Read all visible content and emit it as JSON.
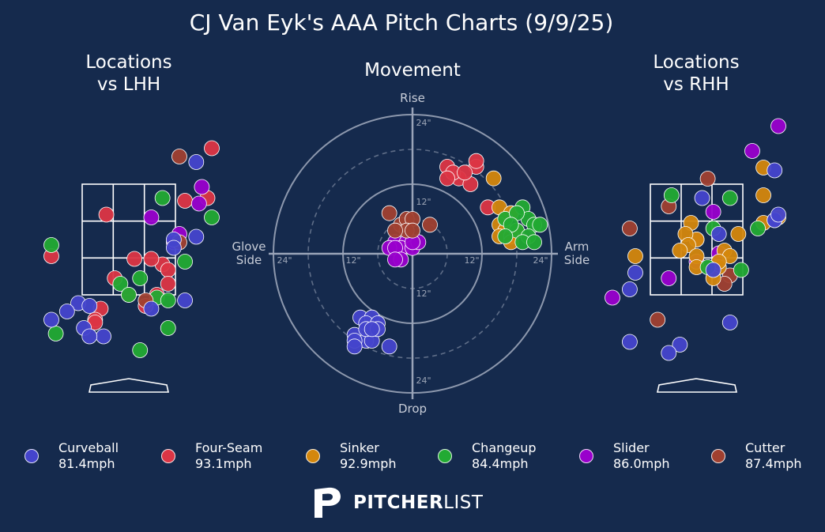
{
  "chart_data": [
    {
      "type": "scatter",
      "title": "CJ Van Eyk's AAA Pitch Charts (9/9/25)",
      "subtitle": "Movement",
      "labels": {
        "top": "Rise",
        "bottom": "Drop",
        "left": "Glove\nSide",
        "right": "Arm\nSide"
      },
      "ring_ticks": [
        "24\"",
        "12\"",
        "12\"",
        "24\"",
        "24\"",
        "12\"",
        "12\"",
        "24\""
      ],
      "rings": [
        6,
        12,
        18,
        24
      ],
      "range": 24,
      "series": [
        {
          "name": "Four-Seam",
          "color": "#dc3545",
          "points": [
            [
              6,
              15
            ],
            [
              8,
              13
            ],
            [
              11,
              15
            ],
            [
              10,
              12
            ],
            [
              7,
              14
            ],
            [
              11,
              16
            ],
            [
              13,
              8
            ],
            [
              9,
              14
            ],
            [
              6,
              13
            ]
          ]
        },
        {
          "name": "Sinker",
          "color": "#d4870d",
          "points": [
            [
              14,
              13
            ],
            [
              15,
              8
            ],
            [
              17,
              7
            ],
            [
              16,
              6
            ],
            [
              15,
              5
            ],
            [
              16,
              4
            ],
            [
              18,
              4
            ],
            [
              15,
              3
            ],
            [
              17,
              3
            ],
            [
              17,
              2
            ]
          ]
        },
        {
          "name": "Changeup",
          "color": "#22aa33",
          "points": [
            [
              16,
              6
            ],
            [
              19,
              8
            ],
            [
              20,
              6
            ],
            [
              18,
              7
            ],
            [
              18,
              4
            ],
            [
              17,
              5
            ],
            [
              21,
              5
            ],
            [
              22,
              5
            ],
            [
              20,
              3
            ],
            [
              19,
              2
            ],
            [
              16,
              3
            ],
            [
              21,
              2
            ]
          ]
        },
        {
          "name": "Slider",
          "color": "#9900cc",
          "points": [
            [
              -3,
              2
            ],
            [
              -1,
              2
            ],
            [
              -2,
              1
            ],
            [
              -4,
              1
            ],
            [
              -3,
              1
            ],
            [
              -2,
              -1
            ],
            [
              0,
              1
            ],
            [
              1,
              2
            ],
            [
              0,
              2
            ],
            [
              -3,
              -1
            ]
          ]
        },
        {
          "name": "Cutter",
          "color": "#a04030",
          "points": [
            [
              -4,
              7
            ],
            [
              -2,
              5
            ],
            [
              -1,
              6
            ],
            [
              0,
              6
            ],
            [
              -1,
              4
            ],
            [
              -3,
              4
            ],
            [
              3,
              5
            ],
            [
              0,
              4
            ]
          ]
        },
        {
          "name": "Curveball",
          "color": "#4444cc",
          "points": [
            [
              -9,
              -11
            ],
            [
              -7,
              -11
            ],
            [
              -8,
              -12
            ],
            [
              -6,
              -12
            ],
            [
              -10,
              -14
            ],
            [
              -8,
              -15
            ],
            [
              -7,
              -15
            ],
            [
              -10,
              -15
            ],
            [
              -8,
              -13
            ],
            [
              -6,
              -13
            ],
            [
              -10,
              -16
            ],
            [
              -4,
              -16
            ],
            [
              -7,
              -13
            ]
          ]
        }
      ]
    },
    {
      "type": "scatter",
      "title": "Locations\nvs LHH",
      "range_x": [
        -2.0,
        2.0
      ],
      "range_z": [
        0.2,
        4.6
      ],
      "series": [
        {
          "name": "Four-Seam",
          "color": "#dc3545",
          "points": [
            [
              2.0,
              4.15
            ],
            [
              1.4,
              3.25
            ],
            [
              1.0,
              3.2
            ],
            [
              -0.4,
              2.95
            ],
            [
              -1.6,
              2.2
            ],
            [
              0.1,
              2.15
            ],
            [
              0.6,
              2.05
            ],
            [
              0.4,
              2.15
            ],
            [
              0.7,
              1.95
            ],
            [
              0.7,
              1.7
            ],
            [
              -0.25,
              1.8
            ],
            [
              0.5,
              1.5
            ],
            [
              0.0,
              1.5
            ],
            [
              -0.5,
              1.25
            ],
            [
              0.3,
              1.3
            ],
            [
              -0.6,
              1.05
            ],
            [
              -0.6,
              1.0
            ]
          ]
        },
        {
          "name": "Changeup",
          "color": "#22aa33",
          "points": [
            [
              0.6,
              3.25
            ],
            [
              1.7,
              2.9
            ],
            [
              -1.6,
              2.4
            ],
            [
              1.0,
              2.1
            ],
            [
              0.2,
              1.8
            ],
            [
              -0.15,
              1.7
            ],
            [
              0.0,
              1.5
            ],
            [
              0.5,
              1.45
            ],
            [
              0.7,
              1.4
            ],
            [
              -1.3,
              0.8
            ],
            [
              0.7,
              0.9
            ],
            [
              0.2,
              0.5
            ]
          ]
        },
        {
          "name": "Slider",
          "color": "#9900cc",
          "points": [
            [
              1.3,
              3.45
            ],
            [
              1.25,
              3.15
            ],
            [
              0.4,
              2.9
            ],
            [
              0.9,
              2.6
            ],
            [
              0.8,
              2.45
            ]
          ]
        },
        {
          "name": "Cutter",
          "color": "#a04030",
          "points": [
            [
              0.9,
              4.0
            ],
            [
              0.9,
              2.45
            ],
            [
              0.3,
              1.4
            ]
          ]
        },
        {
          "name": "Curveball",
          "color": "#4444cc",
          "points": [
            [
              1.2,
              3.9
            ],
            [
              1.2,
              2.55
            ],
            [
              0.8,
              2.5
            ],
            [
              0.8,
              2.35
            ],
            [
              1.0,
              1.4
            ],
            [
              -0.9,
              1.35
            ],
            [
              -1.1,
              1.2
            ],
            [
              -0.7,
              1.3
            ],
            [
              0.4,
              1.25
            ],
            [
              -1.4,
              1.05
            ],
            [
              -0.8,
              0.9
            ],
            [
              -0.45,
              0.75
            ],
            [
              -0.7,
              0.75
            ]
          ]
        }
      ]
    },
    {
      "type": "scatter",
      "title": "Locations\nvs RHH",
      "range_x": [
        -2.0,
        2.0
      ],
      "range_z": [
        0.2,
        4.6
      ],
      "series": [
        {
          "name": "Slider",
          "color": "#9900cc",
          "points": [
            [
              1.0,
              4.1
            ],
            [
              0.3,
              3.0
            ],
            [
              0.4,
              2.25
            ],
            [
              0.0,
              2.1
            ],
            [
              -0.5,
              1.8
            ],
            [
              1.6,
              4.55
            ],
            [
              -2.0,
              1.45
            ]
          ]
        },
        {
          "name": "Cutter",
          "color": "#a04030",
          "points": [
            [
              0.2,
              3.6
            ],
            [
              -0.5,
              3.1
            ],
            [
              -1.2,
              2.7
            ],
            [
              0.0,
              2.5
            ],
            [
              0.6,
              1.85
            ],
            [
              0.5,
              1.7
            ],
            [
              -0.7,
              1.05
            ]
          ]
        },
        {
          "name": "Sinker",
          "color": "#d4870d",
          "points": [
            [
              1.2,
              3.8
            ],
            [
              1.2,
              3.3
            ],
            [
              -0.1,
              2.8
            ],
            [
              0.0,
              2.5
            ],
            [
              -0.2,
              2.6
            ],
            [
              0.5,
              2.3
            ],
            [
              1.8,
              2.9
            ],
            [
              1.2,
              2.8
            ],
            [
              -0.15,
              2.4
            ],
            [
              0.75,
              2.6
            ],
            [
              0.0,
              2.2
            ],
            [
              0.0,
              2.0
            ],
            [
              -1.1,
              2.2
            ],
            [
              0.4,
              2.0
            ],
            [
              -0.3,
              2.3
            ],
            [
              0.6,
              2.2
            ],
            [
              0.4,
              2.1
            ],
            [
              0.3,
              1.8
            ]
          ]
        },
        {
          "name": "Changeup",
          "color": "#22aa33",
          "points": [
            [
              -0.45,
              3.3
            ],
            [
              0.6,
              3.25
            ],
            [
              0.3,
              2.7
            ],
            [
              1.1,
              2.7
            ],
            [
              0.2,
              2.0
            ],
            [
              0.8,
              1.95
            ]
          ]
        },
        {
          "name": "Curveball",
          "color": "#4444cc",
          "points": [
            [
              1.4,
              3.75
            ],
            [
              0.1,
              3.25
            ],
            [
              0.3,
              1.95
            ],
            [
              1.4,
              2.85
            ],
            [
              1.4,
              2.85
            ],
            [
              2.0,
              2.95
            ],
            [
              -1.1,
              1.9
            ],
            [
              -1.2,
              1.6
            ],
            [
              0.6,
              1.0
            ],
            [
              -1.2,
              0.65
            ],
            [
              -0.3,
              0.6
            ],
            [
              -0.5,
              0.45
            ],
            [
              0.4,
              2.6
            ]
          ]
        }
      ]
    }
  ],
  "legend": [
    {
      "name": "Curveball",
      "speed": "81.4mph",
      "color": "#4444cc"
    },
    {
      "name": "Four-Seam",
      "speed": "93.1mph",
      "color": "#dc3545"
    },
    {
      "name": "Sinker",
      "speed": "92.9mph",
      "color": "#d4870d"
    },
    {
      "name": "Changeup",
      "speed": "84.4mph",
      "color": "#22aa33"
    },
    {
      "name": "Slider",
      "speed": "86.0mph",
      "color": "#9900cc"
    },
    {
      "name": "Cutter",
      "speed": "87.4mph",
      "color": "#a04030"
    }
  ],
  "brand": {
    "word_bold": "PITCHER",
    "word_light": "LIST",
    "logo": "pitcherlist-p-logo"
  },
  "colors": {
    "background": "#152a4d",
    "ring": "#9aa4b8",
    "zone": "#ffffff",
    "axis_text": "#c8cdd8"
  }
}
